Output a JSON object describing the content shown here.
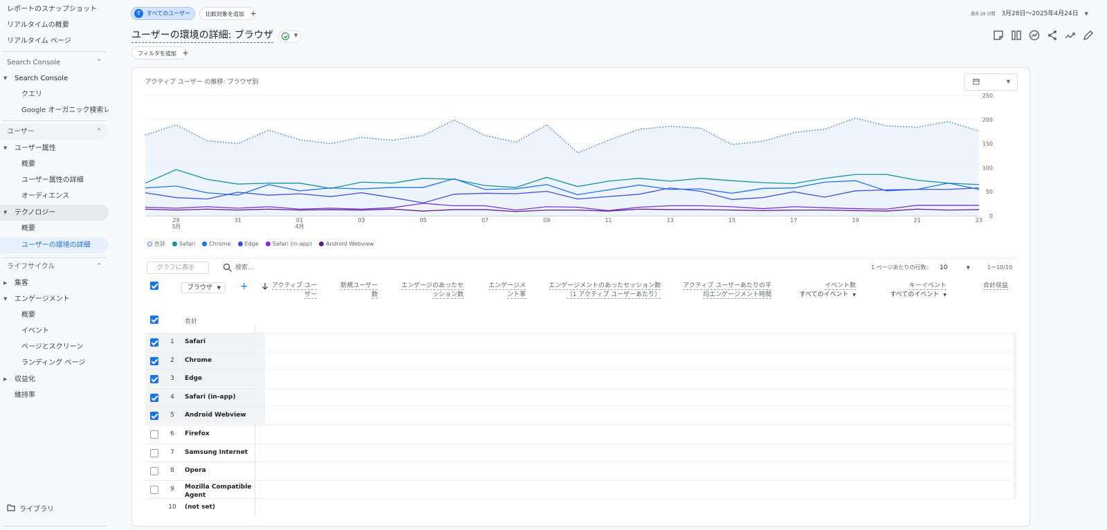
{
  "sidebar": {
    "items": [
      {
        "label": "レポートのスナップショット"
      },
      {
        "label": "リアルタイムの概要"
      },
      {
        "label": "リアルタイム ページ"
      }
    ],
    "section_search_console": {
      "label": "Search Console"
    },
    "search_console_group": {
      "label": "Search Console"
    },
    "search_console_children": [
      {
        "label": "クエリ"
      },
      {
        "label": "Google オーガニック検索レ..."
      }
    ],
    "section_users": {
      "label": "ユーザー"
    },
    "user_attributes_group": {
      "label": "ユーザー属性"
    },
    "user_attributes_children": [
      {
        "label": "概要"
      },
      {
        "label": "ユーザー属性の詳細"
      },
      {
        "label": "オーディエンス"
      }
    ],
    "technology_group": {
      "label": "テクノロジー"
    },
    "technology_children": [
      {
        "label": "概要"
      },
      {
        "label": "ユーザーの環境の詳細"
      }
    ],
    "section_lifecycle": {
      "label": "ライフサイクル"
    },
    "acquisition_group": {
      "label": "集客"
    },
    "engagement_group": {
      "label": "エンゲージメント"
    },
    "engagement_children": [
      {
        "label": "概要"
      },
      {
        "label": "イベント"
      },
      {
        "label": "ページとスクリーン"
      },
      {
        "label": "ランディング ページ"
      }
    ],
    "monetization_group": {
      "label": "収益化"
    },
    "retention": {
      "label": "維持率"
    },
    "library": {
      "label": "ライブラリ"
    }
  },
  "topbar": {
    "segment_chip": {
      "avatar": "す",
      "label": "すべてのユーザー"
    },
    "compare_chip": {
      "label": "比較対象を追加"
    },
    "date_prefix": "過去 28 日間",
    "date_range": "3月28日～2025年4月24日"
  },
  "header": {
    "title": "ユーザーの環境の詳細: ブラウザ",
    "filter_chip": "フィルタを追加"
  },
  "chart": {
    "title": "アクティブ ユーザー の推移: ブラウザ別",
    "legend": [
      {
        "name": "合計",
        "color": "#4285f4"
      },
      {
        "name": "Safari",
        "color": "#12939a"
      },
      {
        "name": "Chrome",
        "color": "#1a73e8"
      },
      {
        "name": "Edge",
        "color": "#3f51d8"
      },
      {
        "name": "Safari (in-app)",
        "color": "#7b2fd6"
      },
      {
        "name": "Android Webview",
        "color": "#5e1b8a"
      }
    ]
  },
  "chart_data": {
    "type": "line",
    "title": "アクティブ ユーザー の推移: ブラウザ別",
    "x": [
      "3月28日",
      "3月29日",
      "3月30日",
      "3月31日",
      "4月1日",
      "4月2日",
      "4月3日",
      "4月4日",
      "4月5日",
      "4月6日",
      "4月7日",
      "4月8日",
      "4月9日",
      "4月10日",
      "4月11日",
      "4月12日",
      "4月13日",
      "4月14日",
      "4月15日",
      "4月16日",
      "4月17日",
      "4月18日",
      "4月19日",
      "4月20日",
      "4月21日",
      "4月22日",
      "4月23日",
      "4月24日"
    ],
    "x_tick_labels": [
      {
        "day": "29",
        "month": "3月"
      },
      {
        "day": "31",
        "month": ""
      },
      {
        "day": "01",
        "month": "4月"
      },
      {
        "day": "03",
        "month": ""
      },
      {
        "day": "05",
        "month": ""
      },
      {
        "day": "07",
        "month": ""
      },
      {
        "day": "09",
        "month": ""
      },
      {
        "day": "11",
        "month": ""
      },
      {
        "day": "13",
        "month": ""
      },
      {
        "day": "15",
        "month": ""
      },
      {
        "day": "17",
        "month": ""
      },
      {
        "day": "19",
        "month": ""
      },
      {
        "day": "21",
        "month": ""
      },
      {
        "day": "23",
        "month": ""
      }
    ],
    "y_ticks": [
      250,
      200,
      150,
      100,
      50,
      0
    ],
    "ylim": [
      0,
      250
    ],
    "series": [
      {
        "name": "合計",
        "style": "dotted",
        "values": [
          168,
          189,
          156,
          150,
          178,
          158,
          150,
          163,
          157,
          167,
          199,
          167,
          153,
          189,
          131,
          157,
          180,
          186,
          182,
          148,
          155,
          173,
          180,
          203,
          187,
          184,
          196,
          176
        ]
      },
      {
        "name": "Safari",
        "values": [
          68,
          96,
          76,
          66,
          68,
          68,
          57,
          70,
          68,
          78,
          76,
          63,
          59,
          80,
          61,
          72,
          78,
          72,
          78,
          73,
          69,
          67,
          78,
          86,
          86,
          74,
          68,
          65
        ]
      },
      {
        "name": "Chrome",
        "values": [
          58,
          62,
          48,
          43,
          65,
          52,
          58,
          56,
          59,
          59,
          77,
          55,
          56,
          65,
          44,
          54,
          64,
          55,
          56,
          47,
          57,
          58,
          70,
          73,
          52,
          55,
          68,
          55
        ]
      },
      {
        "name": "Edge",
        "values": [
          48,
          38,
          35,
          49,
          43,
          46,
          40,
          48,
          38,
          27,
          45,
          47,
          46,
          51,
          35,
          40,
          45,
          58,
          51,
          34,
          38,
          50,
          39,
          52,
          54,
          55,
          55,
          58
        ]
      },
      {
        "name": "Safari (in-app)",
        "values": [
          18,
          16,
          19,
          16,
          19,
          14,
          16,
          14,
          17,
          26,
          21,
          21,
          12,
          19,
          18,
          11,
          18,
          21,
          21,
          19,
          15,
          19,
          17,
          15,
          14,
          22,
          22,
          22
        ]
      },
      {
        "name": "Android Webview",
        "values": [
          14,
          12,
          14,
          12,
          14,
          12,
          13,
          12,
          14,
          10,
          13,
          13,
          9,
          12,
          12,
          10,
          14,
          13,
          13,
          12,
          11,
          12,
          12,
          11,
          10,
          14,
          12,
          13
        ]
      }
    ]
  },
  "table": {
    "plot_button": "グラフに表示",
    "search_placeholder": "検索...",
    "rows_per_page_label": "1 ページあたりの行数:",
    "rows_per_page_value": "10",
    "page_range": "1～10/10",
    "dimension_select": "ブラウザ",
    "columns": [
      {
        "l1": "アクティブ ユー",
        "l2": "ザー",
        "sub": ""
      },
      {
        "l1": "新規ユーザー",
        "l2": "数",
        "sub": ""
      },
      {
        "l1": "エンゲージのあったセ",
        "l2": "ッション数",
        "sub": ""
      },
      {
        "l1": "エンゲージメ",
        "l2": "ント率",
        "sub": ""
      },
      {
        "l1": "エンゲージメントのあったセッション数",
        "l2": "（1 アクティブ ユーザーあたり）",
        "sub": ""
      },
      {
        "l1": "アクティブ ユーザーあたりの平",
        "l2": "均エンゲージメント時間",
        "sub": ""
      },
      {
        "l1": "イベント数",
        "l2": "",
        "sub": "すべてのイベント"
      },
      {
        "l1": "キーイベント",
        "l2": "",
        "sub": "すべてのイベント"
      },
      {
        "l1": "合計収益",
        "l2": "",
        "sub": ""
      }
    ],
    "total_label": "合計",
    "rows": [
      {
        "idx": "1",
        "name": "Safari",
        "checked": true
      },
      {
        "idx": "2",
        "name": "Chrome",
        "checked": true
      },
      {
        "idx": "3",
        "name": "Edge",
        "checked": true
      },
      {
        "idx": "4",
        "name": "Safari (in-app)",
        "checked": true
      },
      {
        "idx": "5",
        "name": "Android Webview",
        "checked": true
      },
      {
        "idx": "6",
        "name": "Firefox",
        "checked": false
      },
      {
        "idx": "7",
        "name": "Samsung Internet",
        "checked": false
      },
      {
        "idx": "8",
        "name": "Opera",
        "checked": false
      },
      {
        "idx": "9",
        "name": "Mozilla Compatible Agent",
        "checked": false
      },
      {
        "idx": "10",
        "name": "(not set)",
        "checked": null
      }
    ]
  }
}
